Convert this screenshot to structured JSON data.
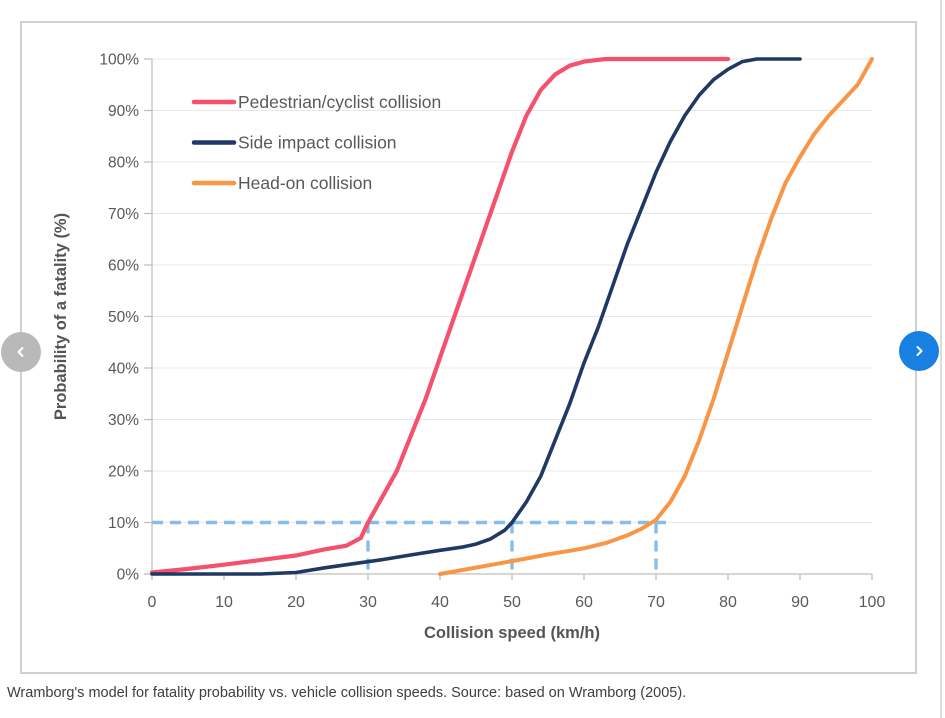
{
  "caption": "Wramborg's model for fatality probability vs. vehicle collision speeds. Source: based on Wramborg (2005).",
  "icons": {
    "prev": "chevron-left",
    "next": "chevron-right"
  },
  "colors": {
    "card_border": "#cfcfd2",
    "grid": "#e8e8e8",
    "axis": "#bfbfbf",
    "tick_text": "#595959",
    "axis_title_text": "#555555",
    "legend_text": "#595959",
    "caption_text": "#3b3f42",
    "prev_button_bg": "#b9b9b9",
    "next_button_bg": "#1780e0",
    "threshold_dash": "#86bdea"
  },
  "chart_data": {
    "type": "line",
    "title": "",
    "xlabel": "Collision speed (km/h)",
    "ylabel": "Probability of a fatality (%)",
    "xlim": [
      0,
      100
    ],
    "ylim": [
      0,
      100
    ],
    "grid": true,
    "legend_position": "top-left-inside",
    "x_ticks": [
      {
        "value": 0,
        "label": "0"
      },
      {
        "value": 10,
        "label": "10"
      },
      {
        "value": 20,
        "label": "20"
      },
      {
        "value": 30,
        "label": "30"
      },
      {
        "value": 40,
        "label": "40"
      },
      {
        "value": 50,
        "label": "50"
      },
      {
        "value": 60,
        "label": "60"
      },
      {
        "value": 70,
        "label": "70"
      },
      {
        "value": 80,
        "label": "80"
      },
      {
        "value": 90,
        "label": "90"
      },
      {
        "value": 100,
        "label": "100"
      }
    ],
    "y_ticks": [
      {
        "value": 0,
        "label": "0%"
      },
      {
        "value": 10,
        "label": "10%"
      },
      {
        "value": 20,
        "label": "20%"
      },
      {
        "value": 30,
        "label": "30%"
      },
      {
        "value": 40,
        "label": "40%"
      },
      {
        "value": 50,
        "label": "50%"
      },
      {
        "value": 60,
        "label": "60%"
      },
      {
        "value": 70,
        "label": "70%"
      },
      {
        "value": 80,
        "label": "80%"
      },
      {
        "value": 90,
        "label": "90%"
      },
      {
        "value": 100,
        "label": "100%"
      }
    ],
    "series": [
      {
        "name": "Pedestrian/cyclist collision",
        "color": "#f4516c",
        "width": 4.2,
        "points": [
          [
            0,
            0.3
          ],
          [
            5,
            1
          ],
          [
            10,
            1.8
          ],
          [
            15,
            2.7
          ],
          [
            20,
            3.6
          ],
          [
            24,
            4.8
          ],
          [
            27,
            5.5
          ],
          [
            29,
            7
          ],
          [
            30,
            10
          ],
          [
            32,
            15
          ],
          [
            34,
            20
          ],
          [
            36,
            27
          ],
          [
            38,
            34
          ],
          [
            40,
            42
          ],
          [
            42,
            50
          ],
          [
            44,
            58
          ],
          [
            46,
            66
          ],
          [
            48,
            74
          ],
          [
            50,
            82
          ],
          [
            52,
            89
          ],
          [
            54,
            94
          ],
          [
            56,
            97
          ],
          [
            58,
            98.7
          ],
          [
            60,
            99.5
          ],
          [
            63,
            100
          ],
          [
            68,
            100
          ],
          [
            74,
            100
          ],
          [
            80,
            100
          ]
        ]
      },
      {
        "name": "Side impact collision",
        "color": "#1f3864",
        "width": 3.6,
        "points": [
          [
            0,
            0
          ],
          [
            10,
            0
          ],
          [
            15,
            0
          ],
          [
            20,
            0.3
          ],
          [
            24,
            1.2
          ],
          [
            28,
            2
          ],
          [
            32,
            2.8
          ],
          [
            36,
            3.7
          ],
          [
            40,
            4.6
          ],
          [
            43,
            5.2
          ],
          [
            45,
            5.8
          ],
          [
            47,
            6.8
          ],
          [
            49,
            8.5
          ],
          [
            50,
            10
          ],
          [
            52,
            14
          ],
          [
            54,
            19
          ],
          [
            56,
            26
          ],
          [
            58,
            33
          ],
          [
            60,
            41
          ],
          [
            62,
            48
          ],
          [
            64,
            56
          ],
          [
            66,
            64
          ],
          [
            68,
            71
          ],
          [
            70,
            78
          ],
          [
            72,
            84
          ],
          [
            74,
            89
          ],
          [
            76,
            93
          ],
          [
            78,
            96
          ],
          [
            80,
            98
          ],
          [
            82,
            99.5
          ],
          [
            84,
            100
          ],
          [
            87,
            100
          ],
          [
            90,
            100
          ]
        ]
      },
      {
        "name": "Head-on collision",
        "color": "#f79646",
        "width": 4,
        "points": [
          [
            40,
            0
          ],
          [
            44,
            1
          ],
          [
            48,
            2
          ],
          [
            52,
            3
          ],
          [
            55,
            3.8
          ],
          [
            58,
            4.5
          ],
          [
            60,
            5
          ],
          [
            63,
            6
          ],
          [
            66,
            7.5
          ],
          [
            68,
            8.8
          ],
          [
            70,
            10.5
          ],
          [
            72,
            14
          ],
          [
            74,
            19
          ],
          [
            76,
            26
          ],
          [
            78,
            34
          ],
          [
            80,
            43
          ],
          [
            82,
            52
          ],
          [
            84,
            61
          ],
          [
            86,
            69
          ],
          [
            88,
            76
          ],
          [
            90,
            81
          ],
          [
            92,
            85.5
          ],
          [
            94,
            89
          ],
          [
            96,
            92
          ],
          [
            98,
            95
          ],
          [
            100,
            100
          ]
        ]
      }
    ],
    "annotations": {
      "threshold_pct": 10,
      "threshold_speeds": [
        30,
        50,
        70
      ],
      "horizontal_to_speed": 70,
      "dash_color": "#86bdea"
    }
  }
}
